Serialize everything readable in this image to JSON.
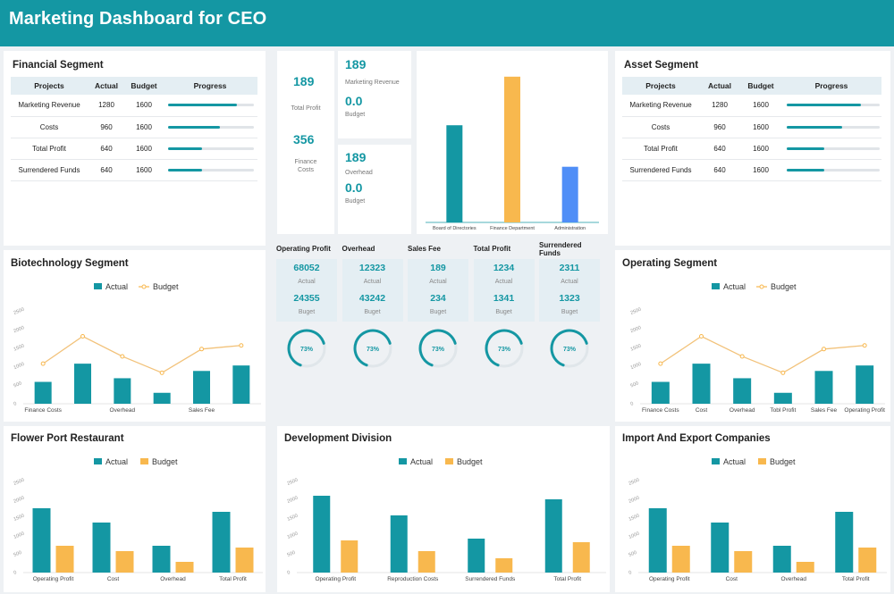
{
  "header": {
    "title": "Marketing Dashboard for CEO"
  },
  "colors": {
    "teal": "#1497a3",
    "orange": "#f8b84e",
    "blue": "#4f8ef7",
    "header": "#1497a3"
  },
  "financial": {
    "title": "Financial Segment",
    "columns": [
      "Projects",
      "Actual",
      "Budget",
      "Progress"
    ],
    "rows": [
      {
        "project": "Marketing Revenue",
        "actual": "1280",
        "budget": "1600",
        "progress": 0.8
      },
      {
        "project": "Costs",
        "actual": "960",
        "budget": "1600",
        "progress": 0.6
      },
      {
        "project": "Total Profit",
        "actual": "640",
        "budget": "1600",
        "progress": 0.4
      },
      {
        "project": "Surrendered Funds",
        "actual": "640",
        "budget": "1600",
        "progress": 0.4
      }
    ]
  },
  "asset": {
    "title": "Asset Segment",
    "columns": [
      "Projects",
      "Actual",
      "Budget",
      "Progress"
    ],
    "rows": [
      {
        "project": "Marketing Revenue",
        "actual": "1280",
        "budget": "1600",
        "progress": 0.8
      },
      {
        "project": "Costs",
        "actual": "960",
        "budget": "1600",
        "progress": 0.6
      },
      {
        "project": "Total Profit",
        "actual": "640",
        "budget": "1600",
        "progress": 0.4
      },
      {
        "project": "Surrendered Funds",
        "actual": "640",
        "budget": "1600",
        "progress": 0.4
      }
    ]
  },
  "kpi": {
    "total_profit_value": "189",
    "total_profit_label": "Total Profit",
    "finance_costs_value": "356",
    "finance_costs_label": "Finance Costs",
    "marketing_revenue_value": "189",
    "marketing_revenue_label": "Marketing Revenue",
    "marketing_budget_value": "0.0",
    "marketing_budget_label": "Budget",
    "overhead_value": "189",
    "overhead_label": "Overhead",
    "overhead_budget_value": "0.0",
    "overhead_budget_label": "Budget"
  },
  "metrics": [
    {
      "name": "Operating Profit",
      "actual": "68052",
      "actual_label": "Actual",
      "budget": "24355",
      "budget_label": "Buget",
      "gauge": "73%",
      "pct": 0.73
    },
    {
      "name": "Overhead",
      "actual": "12323",
      "actual_label": "Actual",
      "budget": "43242",
      "budget_label": "Buget",
      "gauge": "73%",
      "pct": 0.73
    },
    {
      "name": "Sales Fee",
      "actual": "189",
      "actual_label": "Actual",
      "budget": "234",
      "budget_label": "Buget",
      "gauge": "73%",
      "pct": 0.73
    },
    {
      "name": "Total Profit",
      "actual": "1234",
      "actual_label": "Actual",
      "budget": "1341",
      "budget_label": "Buget",
      "gauge": "73%",
      "pct": 0.73
    },
    {
      "name": "Surrendered Funds",
      "actual": "2311",
      "actual_label": "Actual",
      "budget": "1323",
      "budget_label": "Buget",
      "gauge": "73%",
      "pct": 0.73
    }
  ],
  "chart_data": [
    {
      "id": "dept",
      "type": "bar",
      "title": "",
      "categories": [
        "Board of Directories",
        "Finance Department",
        "Administration"
      ],
      "values": [
        1100,
        1650,
        630
      ],
      "colors": [
        "#1497a3",
        "#f8b84e",
        "#4f8ef7"
      ],
      "ylim": [
        0,
        1800
      ],
      "grid": false
    },
    {
      "id": "bio",
      "type": "bar",
      "title": "Biotechnology Segment",
      "legend": [
        "Actual",
        "Budget"
      ],
      "legend_placement": "top-center",
      "categories": [
        "Finance Costs",
        "",
        "Overhead",
        "",
        "Sales Fee",
        ""
      ],
      "series": [
        {
          "name": "Actual",
          "kind": "bar",
          "values": [
            600,
            1100,
            700,
            300,
            900,
            1050
          ]
        },
        {
          "name": "Budget",
          "kind": "line",
          "values": [
            1100,
            1850,
            1300,
            850,
            1500,
            1600
          ]
        }
      ],
      "yticks": [
        "0",
        "500",
        "1000",
        "1500",
        "2000",
        "2500"
      ],
      "ylim": [
        0,
        2500
      ],
      "grid": false
    },
    {
      "id": "operating",
      "type": "bar",
      "title": "Operating Segment",
      "legend": [
        "Actual",
        "Budget"
      ],
      "legend_placement": "top-center",
      "categories": [
        "Finance Costs",
        "Cost",
        "Overhead",
        "Tobl Profit",
        "Sales Fee",
        "Operating Profit"
      ],
      "series": [
        {
          "name": "Actual",
          "kind": "bar",
          "values": [
            600,
            1100,
            700,
            300,
            900,
            1050
          ]
        },
        {
          "name": "Budget",
          "kind": "line",
          "values": [
            1100,
            1850,
            1300,
            850,
            1500,
            1600
          ]
        }
      ],
      "yticks": [
        "0",
        "500",
        "1000",
        "1500",
        "2000",
        "2500"
      ],
      "ylim": [
        0,
        2500
      ],
      "grid": false
    },
    {
      "id": "flower",
      "type": "bar",
      "title": "Flower Port Restaurant",
      "legend": [
        "Actual",
        "Budget"
      ],
      "legend_placement": "top-center",
      "categories": [
        "Operating Profit",
        "Cost",
        "Overhead",
        "Total Profit"
      ],
      "series": [
        {
          "name": "Actual",
          "kind": "bar",
          "values": [
            1800,
            1400,
            750,
            1700
          ]
        },
        {
          "name": "Budget",
          "kind": "bar",
          "values": [
            750,
            600,
            300,
            700
          ]
        }
      ],
      "yticks": [
        "0",
        "500",
        "1000",
        "1500",
        "2000",
        "2500"
      ],
      "ylim": [
        0,
        2500
      ],
      "grid": false
    },
    {
      "id": "dev",
      "type": "bar",
      "title": "Development Division",
      "legend": [
        "Actual",
        "Budget"
      ],
      "legend_placement": "top-center",
      "categories": [
        "Operating Profit",
        "Reproduction Costs",
        "Surrendered Funds",
        "Total Profit"
      ],
      "series": [
        {
          "name": "Actual",
          "kind": "bar",
          "values": [
            2150,
            1600,
            950,
            2050
          ]
        },
        {
          "name": "Budget",
          "kind": "bar",
          "values": [
            900,
            600,
            400,
            850
          ]
        }
      ],
      "yticks": [
        "0",
        "500",
        "1000",
        "1500",
        "2000",
        "2500"
      ],
      "ylim": [
        0,
        2500
      ],
      "grid": false
    },
    {
      "id": "import",
      "type": "bar",
      "title": "Import And Export Companies",
      "legend": [
        "Actual",
        "Budget"
      ],
      "legend_placement": "top-center",
      "categories": [
        "Operating Profit",
        "Cost",
        "Overhead",
        "Total Profit"
      ],
      "series": [
        {
          "name": "Actual",
          "kind": "bar",
          "values": [
            1800,
            1400,
            750,
            1700
          ]
        },
        {
          "name": "Budget",
          "kind": "bar",
          "values": [
            750,
            600,
            300,
            700
          ]
        }
      ],
      "yticks": [
        "0",
        "500",
        "1000",
        "1500",
        "2000",
        "2500"
      ],
      "ylim": [
        0,
        2500
      ],
      "grid": false
    }
  ]
}
